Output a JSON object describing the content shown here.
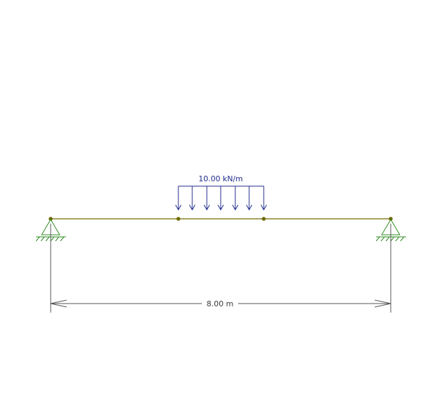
{
  "model": {
    "load": {
      "label": "10.00 kN/m",
      "type": "uniform-distributed",
      "color": "#1f2a8c"
    },
    "span": {
      "label": "8.00 m"
    },
    "colors": {
      "beam": "#6e6a00",
      "node": "#6e6a00",
      "support": "#2e8b22",
      "dimension": "#555555"
    }
  }
}
